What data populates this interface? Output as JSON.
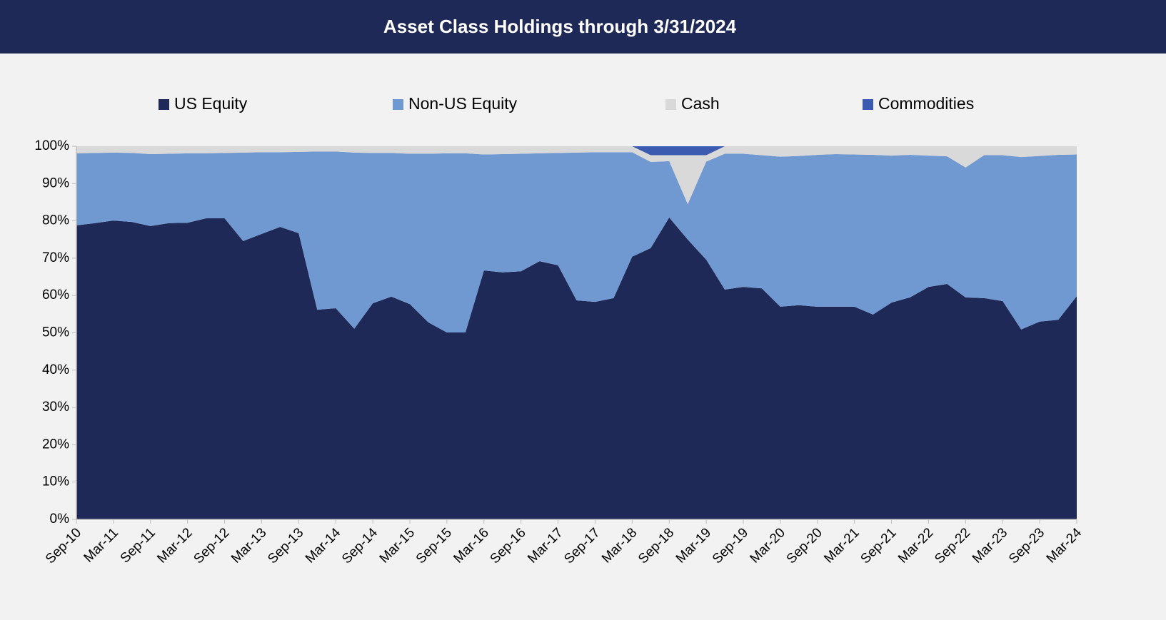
{
  "chart_data": {
    "type": "stacked_area",
    "title": "Asset Class Holdings through 3/31/2024",
    "categories": [
      "Sep-10",
      null,
      "Mar-11",
      null,
      "Sep-11",
      null,
      "Mar-12",
      null,
      "Sep-12",
      null,
      "Mar-13",
      null,
      "Sep-13",
      null,
      "Mar-14",
      null,
      "Sep-14",
      null,
      "Mar-15",
      null,
      "Sep-15",
      null,
      "Mar-16",
      null,
      "Sep-16",
      null,
      "Mar-17",
      null,
      "Sep-17",
      null,
      "Mar-18",
      null,
      "Sep-18",
      null,
      "Mar-19",
      null,
      "Sep-19",
      null,
      "Mar-20",
      null,
      "Sep-20",
      null,
      "Mar-21",
      null,
      "Sep-21",
      null,
      "Mar-22",
      null,
      "Sep-22",
      null,
      "Mar-23",
      null,
      "Sep-23",
      null,
      "Mar-24"
    ],
    "series": [
      {
        "name": "US Equity",
        "color": "#1f2957",
        "values": [
          78.8,
          79.4,
          80.1,
          79.7,
          78.6,
          79.4,
          79.5,
          80.7,
          80.7,
          74.6,
          76.5,
          78.4,
          76.7,
          56.2,
          56.6,
          51.1,
          57.9,
          59.7,
          57.7,
          52.8,
          50.1,
          50.1,
          66.7,
          66.2,
          66.5,
          69.2,
          68.1,
          58.7,
          58.3,
          59.3,
          70.4,
          72.7,
          80.9,
          75.0,
          69.6,
          61.6,
          62.3,
          61.9,
          57.0,
          57.4,
          57.0,
          57.0,
          57.0,
          54.9,
          58.1,
          59.5,
          62.3,
          63.1,
          59.5,
          59.3,
          58.5,
          50.9,
          53.0,
          53.5,
          59.8
        ]
      },
      {
        "name": "Non-US Equity",
        "color": "#7099d1",
        "values": [
          19.3,
          18.8,
          18.2,
          18.5,
          19.3,
          18.6,
          18.6,
          17.4,
          17.5,
          23.7,
          21.9,
          20.0,
          21.8,
          42.4,
          42.0,
          47.2,
          40.3,
          38.5,
          40.3,
          45.2,
          48.0,
          48.0,
          31.1,
          31.7,
          31.5,
          28.9,
          30.1,
          39.6,
          40.1,
          39.1,
          28.0,
          23.1,
          15.1,
          9.5,
          26.3,
          36.4,
          35.7,
          35.7,
          40.2,
          40.0,
          40.7,
          40.9,
          40.8,
          42.8,
          39.4,
          38.2,
          35.2,
          34.2,
          34.8,
          38.3,
          39.1,
          46.2,
          44.4,
          44.2,
          38.0
        ]
      },
      {
        "name": "Cash",
        "color": "#d9d9d9",
        "values": [
          1.9,
          1.8,
          1.7,
          1.8,
          2.1,
          2.0,
          1.9,
          1.9,
          1.8,
          1.7,
          1.6,
          1.6,
          1.5,
          1.4,
          1.4,
          1.7,
          1.8,
          1.8,
          2.0,
          2.0,
          1.9,
          1.9,
          2.2,
          2.1,
          2.0,
          1.9,
          1.8,
          1.7,
          1.6,
          1.6,
          1.6,
          1.8,
          1.6,
          13.1,
          1.7,
          2.0,
          2.0,
          2.4,
          2.8,
          2.6,
          2.3,
          2.1,
          2.2,
          2.3,
          2.5,
          2.3,
          2.5,
          2.7,
          5.7,
          2.4,
          2.4,
          2.9,
          2.6,
          2.3,
          2.2
        ]
      },
      {
        "name": "Commodities",
        "color": "#3a5bb0",
        "values": [
          0,
          0,
          0,
          0,
          0,
          0,
          0,
          0,
          0,
          0,
          0,
          0,
          0,
          0,
          0,
          0,
          0,
          0,
          0,
          0,
          0,
          0,
          0,
          0,
          0,
          0,
          0,
          0,
          0,
          0,
          0,
          2.4,
          2.4,
          2.4,
          2.4,
          0,
          0,
          0,
          0,
          0,
          0,
          0,
          0,
          0,
          0,
          0,
          0,
          0,
          0,
          0,
          0,
          0,
          0,
          0,
          0
        ]
      }
    ],
    "ylim": [
      0,
      100
    ],
    "yticks": [
      {
        "value": 0,
        "label": "0%"
      },
      {
        "value": 10,
        "label": "10%"
      },
      {
        "value": 20,
        "label": "20%"
      },
      {
        "value": 30,
        "label": "30%"
      },
      {
        "value": 40,
        "label": "40%"
      },
      {
        "value": 50,
        "label": "50%"
      },
      {
        "value": 60,
        "label": "60%"
      },
      {
        "value": 70,
        "label": "70%"
      },
      {
        "value": 80,
        "label": "80%"
      },
      {
        "value": 90,
        "label": "90%"
      },
      {
        "value": 100,
        "label": "100%"
      }
    ],
    "grid": false,
    "legend": "top"
  }
}
